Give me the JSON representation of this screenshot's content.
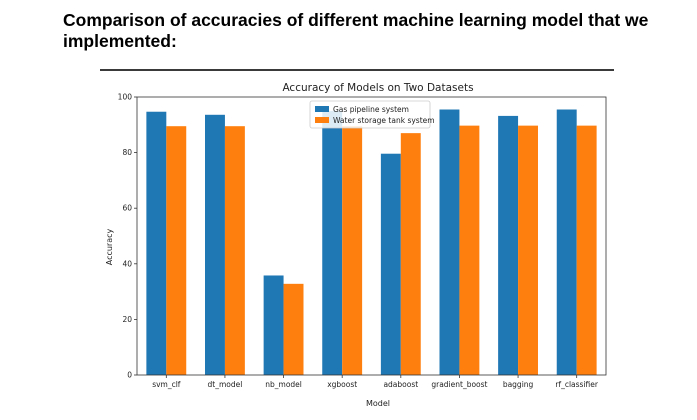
{
  "page": {
    "heading": "Comparison of accuracies of different machine learning model that we implemented:"
  },
  "chart_data": {
    "type": "bar",
    "title": "Accuracy of Models on Two Datasets",
    "xlabel": "Model",
    "ylabel": "Accuracy",
    "ylim": [
      0,
      100
    ],
    "yticks": [
      0,
      20,
      40,
      60,
      80,
      100
    ],
    "categories": [
      "svm_clf",
      "dt_model",
      "nb_model",
      "xgboost",
      "adaboost",
      "gradient_boost",
      "bagging",
      "rf_classifier"
    ],
    "series": [
      {
        "name": "Gas pipeline system",
        "color": "#1f77b4",
        "values": [
          94.7,
          93.6,
          35.8,
          95.0,
          79.6,
          95.5,
          93.2,
          95.5
        ]
      },
      {
        "name": "Water storage tank system",
        "color": "#ff7f0e",
        "values": [
          89.5,
          89.5,
          32.8,
          89.5,
          87.0,
          89.7,
          89.7,
          89.7
        ]
      }
    ],
    "legend_position": "top-center",
    "grid": false
  }
}
